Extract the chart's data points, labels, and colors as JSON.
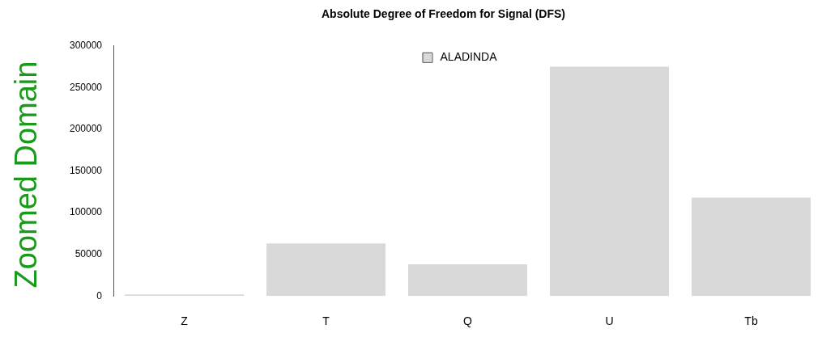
{
  "chart_data": {
    "type": "bar",
    "title": "Absolute Degree of Freedom for Signal (DFS)",
    "ylabel": "Zoomed Domain",
    "categories": [
      "Z",
      "T",
      "Q",
      "U",
      "Tb"
    ],
    "series": [
      {
        "name": "ALADINDA",
        "color": "#d9d9d9",
        "values": [
          2000,
          63000,
          38000,
          275000,
          118000
        ]
      }
    ],
    "ylim": [
      0,
      300000
    ],
    "yticks": [
      0,
      50000,
      100000,
      150000,
      200000,
      250000,
      300000
    ],
    "grid": false,
    "legend": "top"
  }
}
